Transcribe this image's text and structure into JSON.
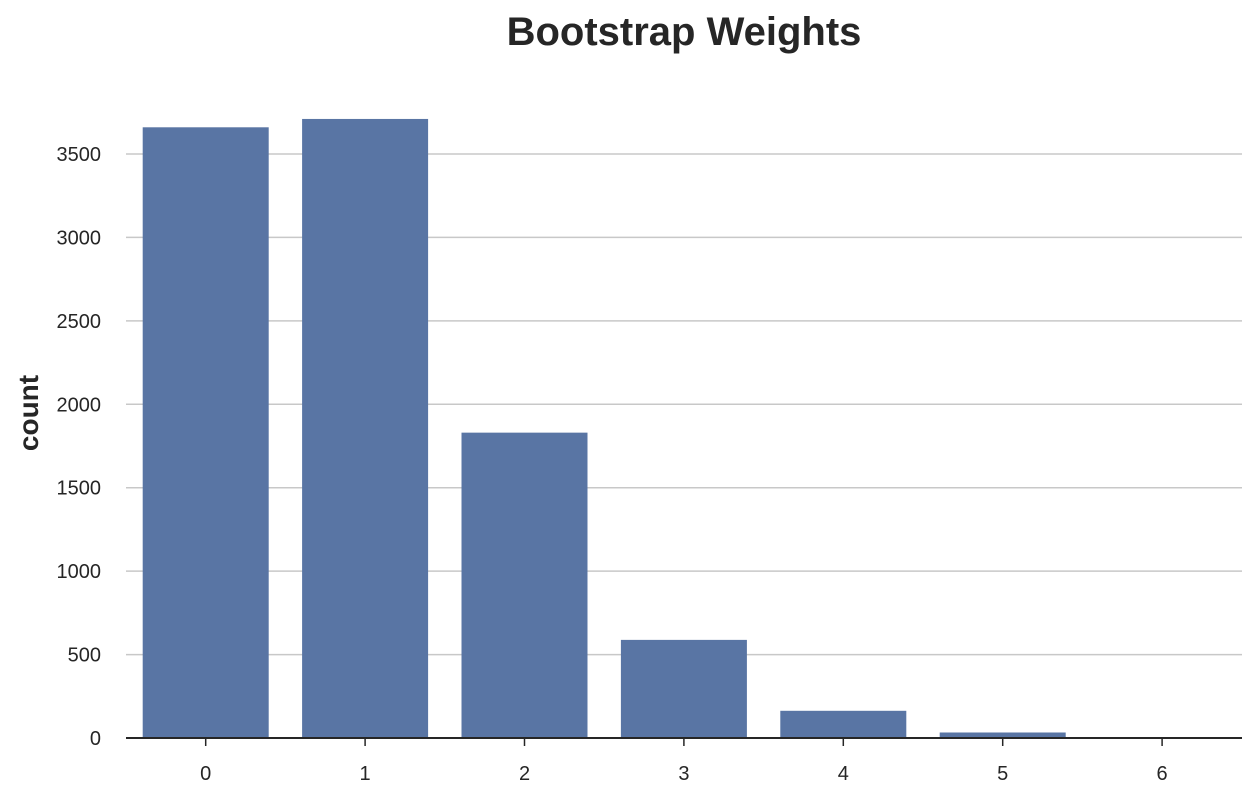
{
  "chart_data": {
    "type": "bar",
    "title": "Bootstrap Weights",
    "xlabel": "",
    "ylabel": "count",
    "categories": [
      "0",
      "1",
      "2",
      "3",
      "4",
      "5",
      "6"
    ],
    "values": [
      3660,
      3710,
      1830,
      588,
      163,
      33,
      3
    ],
    "ylim": [
      0,
      3750
    ],
    "yticks": [
      0,
      500,
      1000,
      1500,
      2000,
      2500,
      3000,
      3500
    ],
    "bar_color": "#5975a4",
    "grid": true
  }
}
